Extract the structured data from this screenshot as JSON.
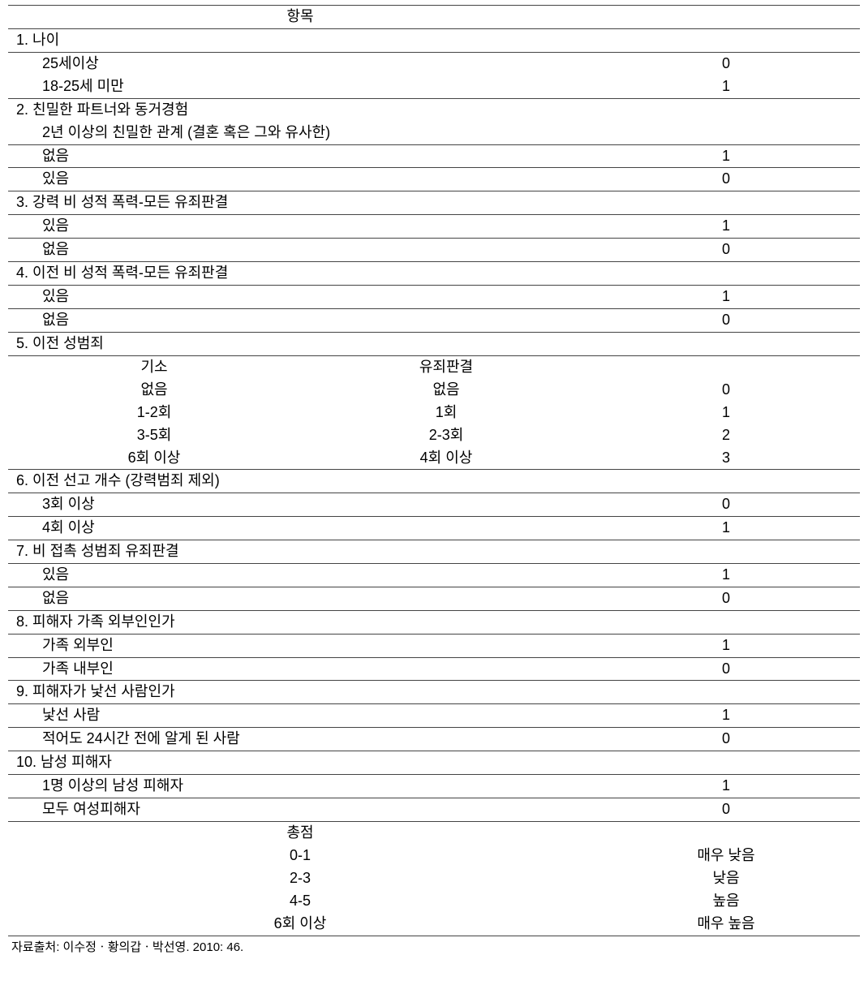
{
  "header": "항목",
  "sections": {
    "s1": {
      "title": "1. 나이",
      "rows": [
        {
          "label": "25세이상",
          "score": "0"
        },
        {
          "label": "18-25세 미만",
          "score": "1"
        }
      ]
    },
    "s2": {
      "title": "2. 친밀한 파트너와 동거경험",
      "subtitle": "2년 이상의 친밀한 관계 (결혼 혹은 그와 유사한)",
      "rows": [
        {
          "label": "없음",
          "score": "1"
        },
        {
          "label": "있음",
          "score": "0"
        }
      ]
    },
    "s3": {
      "title": "3. 강력 비 성적 폭력-모든 유죄판결",
      "rows": [
        {
          "label": "있음",
          "score": "1"
        },
        {
          "label": "없음",
          "score": "0"
        }
      ]
    },
    "s4": {
      "title": "4. 이전 비 성적 폭력-모든 유죄판결",
      "rows": [
        {
          "label": "있음",
          "score": "1"
        },
        {
          "label": "없음",
          "score": "0"
        }
      ]
    },
    "s5": {
      "title": "5. 이전 성범죄",
      "head": {
        "a": "기소",
        "b": "유죄판결"
      },
      "rows": [
        {
          "a": "없음",
          "b": "없음",
          "score": "0"
        },
        {
          "a": "1-2회",
          "b": "1회",
          "score": "1"
        },
        {
          "a": "3-5회",
          "b": "2-3회",
          "score": "2"
        },
        {
          "a": "6회 이상",
          "b": "4회 이상",
          "score": "3"
        }
      ]
    },
    "s6": {
      "title": "6. 이전 선고 개수 (강력범죄   제외)",
      "rows": [
        {
          "label": "3회 이상",
          "score": "0"
        },
        {
          "label": "4회 이상",
          "score": "1"
        }
      ]
    },
    "s7": {
      "title": "7. 비 접촉 성범죄 유죄판결",
      "rows": [
        {
          "label": "있음",
          "score": "1"
        },
        {
          "label": "없음",
          "score": "0"
        }
      ]
    },
    "s8": {
      "title": "8. 피해자 가족 외부인인가",
      "rows": [
        {
          "label": "가족 외부인",
          "score": "1"
        },
        {
          "label": "가족 내부인",
          "score": "0"
        }
      ]
    },
    "s9": {
      "title": "9. 피해자가 낯선 사람인가",
      "rows": [
        {
          "label": "낯선 사람",
          "score": "1"
        },
        {
          "label": "적어도 24시간 전에 알게 된 사람",
          "score": "0"
        }
      ]
    },
    "s10": {
      "title": "10. 남성 피해자",
      "rows": [
        {
          "label": "1명 이상의 남성 피해자",
          "score": "1"
        },
        {
          "label": "모두 여성피해자",
          "score": "0"
        }
      ]
    }
  },
  "total": {
    "title": "총점",
    "rows": [
      {
        "label": "0-1",
        "level": "매우 낮음"
      },
      {
        "label": "2-3",
        "level": "낮음"
      },
      {
        "label": "4-5",
        "level": "높음"
      },
      {
        "label": "6회 이상",
        "level": "매우 높음"
      }
    ]
  },
  "source": "자료출처: 이수정ㆍ황의갑ㆍ박선영. 2010: 46."
}
